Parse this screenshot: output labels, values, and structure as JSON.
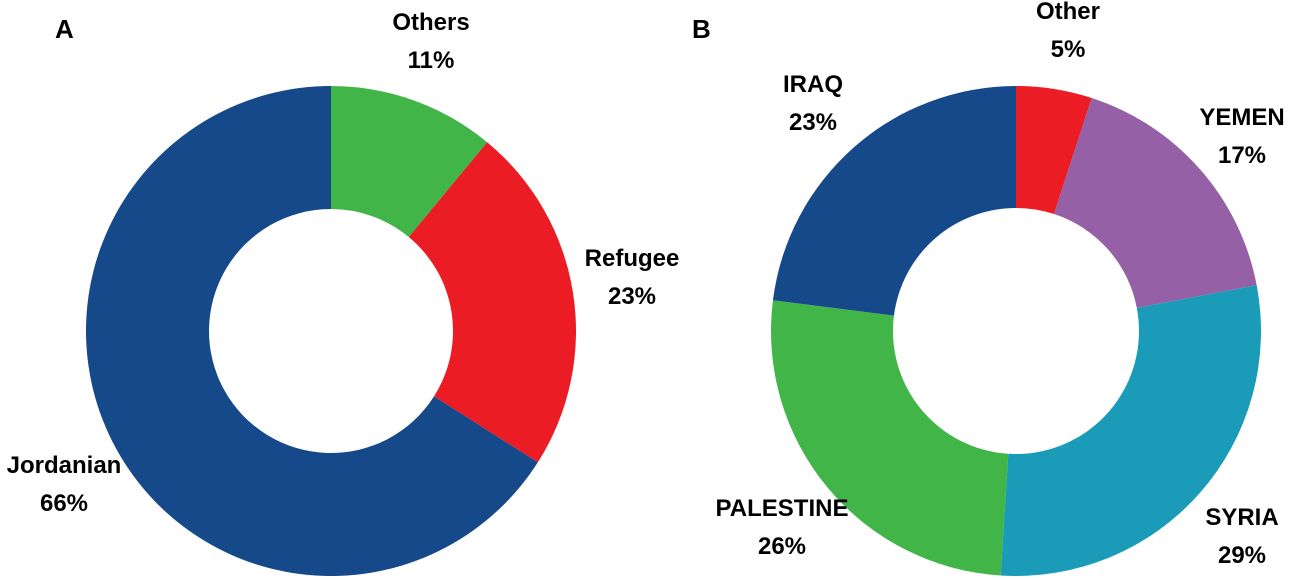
{
  "chart_data": [
    {
      "type": "pie",
      "panel_label": "A",
      "categories": [
        "Others",
        "Refugee",
        "Jordanian"
      ],
      "values": [
        11,
        23,
        66
      ],
      "value_labels": [
        "11%",
        "23%",
        "66%"
      ],
      "colors": [
        "#42b549",
        "#ec1c24",
        "#16498a"
      ],
      "hole": true,
      "title": "",
      "legend": "none"
    },
    {
      "type": "pie",
      "panel_label": "B",
      "categories": [
        "Other",
        "YEMEN",
        "SYRIA",
        "PALESTINE",
        "IRAQ"
      ],
      "values": [
        5,
        17,
        29,
        26,
        23
      ],
      "value_labels": [
        "5%",
        "17%",
        "29%",
        "26%",
        "23%"
      ],
      "colors": [
        "#ec1c24",
        "#9560a6",
        "#1a9cb9",
        "#42b549",
        "#16498a"
      ],
      "hole": true,
      "title": "",
      "legend": "none"
    }
  ]
}
